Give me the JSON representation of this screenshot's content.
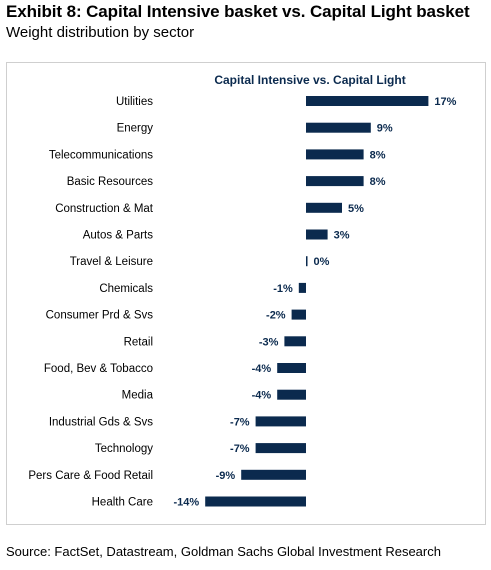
{
  "header": {
    "title": "Exhibit 8: Capital Intensive basket vs. Capital Light basket",
    "subtitle": "Weight distribution by sector"
  },
  "footer": {
    "source": "Source: FactSet, Datastream, Goldman Sachs Global Investment Research"
  },
  "colors": {
    "bar": "#0b2a4e",
    "frame": "#cfcfcf"
  },
  "chart_data": {
    "type": "bar",
    "orientation": "horizontal",
    "title": "Capital Intensive vs. Capital Light",
    "categories": [
      "Utilities",
      "Energy",
      "Telecommunications",
      "Basic Resources",
      "Construction & Mat",
      "Autos & Parts",
      "Travel & Leisure",
      "Chemicals",
      "Consumer Prd & Svs",
      "Retail",
      "Food, Bev & Tobacco",
      "Media",
      "Industrial Gds & Svs",
      "Technology",
      "Pers Care & Food Retail",
      "Health Care"
    ],
    "values": [
      17,
      9,
      8,
      8,
      5,
      3,
      0.2,
      -1,
      -2,
      -3,
      -4,
      -4,
      -7,
      -7,
      -9,
      -14
    ],
    "value_labels": [
      "17%",
      "9%",
      "8%",
      "8%",
      "5%",
      "3%",
      "0%",
      "-1%",
      "-2%",
      "-3%",
      "-4%",
      "-4%",
      "-7%",
      "-7%",
      "-9%",
      "-14%"
    ],
    "xlim": [
      -14,
      17
    ],
    "grid": false,
    "legend": "none"
  }
}
